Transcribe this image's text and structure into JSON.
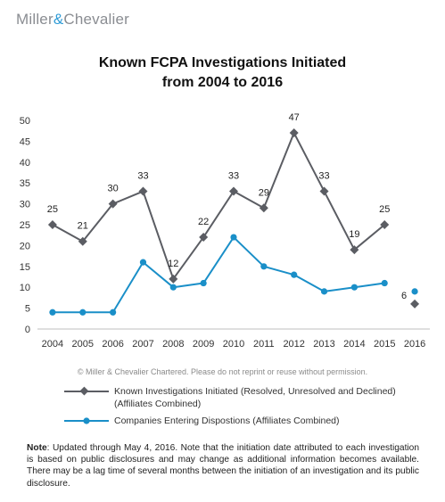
{
  "logo": {
    "part1": "Miller",
    "amp": "&",
    "part2": "Chevalier"
  },
  "title_line1": "Known FCPA Investigations Initiated",
  "title_line2": "from 2004 to 2016",
  "copyright": "© Miller & Chevalier Chartered. Please do not reprint or reuse without permission.",
  "note_label": "Note",
  "note_text": ": Updated through May 4, 2016. Note that the initiation date attributed to each investigation is based on public disclosures and may change as additional information becomes available. There may be a lag time of several months between the initiation of an investigation and its public disclosure.",
  "colors": {
    "series1": "#5b5d63",
    "series2": "#1a8fc8",
    "grid": "#d9d9d9"
  },
  "chart_data": {
    "type": "line",
    "title": "Known FCPA Investigations Initiated from 2004 to 2016",
    "x": [
      "2004",
      "2005",
      "2006",
      "2007",
      "2008",
      "2009",
      "2010",
      "2011",
      "2012",
      "2013",
      "2014",
      "2015",
      "2016"
    ],
    "ylim": [
      0,
      50
    ],
    "yticks": [
      0,
      5,
      10,
      15,
      20,
      25,
      30,
      35,
      40,
      45,
      50
    ],
    "grid": false,
    "legend_position": "bottom",
    "series": [
      {
        "name": "Known Investigations Initiated (Resolved, Unresolved and Declined) (Affiliates Combined)",
        "legend_line1": "Known Investigations Initiated (Resolved, Unresolved and Declined)",
        "legend_line2": "(Affiliates Combined)",
        "marker": "diamond",
        "values": [
          25,
          21,
          30,
          33,
          12,
          22,
          33,
          29,
          47,
          33,
          19,
          25,
          6
        ],
        "labels": [
          "25",
          "21",
          "30",
          "33",
          "12",
          "22",
          "33",
          "29",
          "47",
          "33",
          "19",
          "25",
          "6"
        ],
        "break_before_last": true
      },
      {
        "name": "Companies Entering Dispostions (Affiliates Combined)",
        "marker": "circle",
        "values": [
          4,
          4,
          4,
          16,
          10,
          11,
          22,
          15,
          13,
          9,
          10,
          11,
          9
        ],
        "break_before_last": true
      }
    ]
  }
}
